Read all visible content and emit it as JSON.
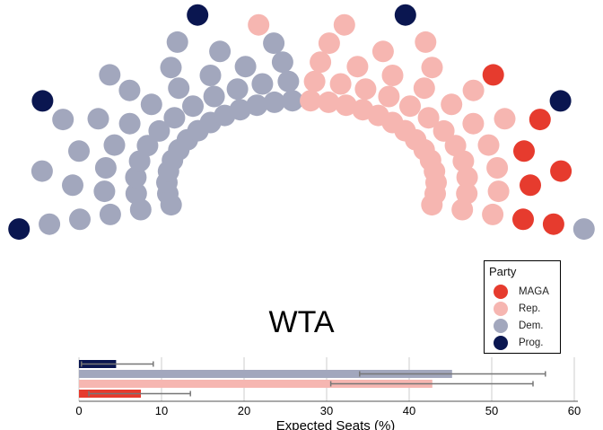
{
  "chart_data": [
    {
      "type": "parliament",
      "legend": {
        "title": "Party",
        "placement": "bottom-right",
        "entries": [
          {
            "name": "MAGA",
            "color": "#e63b2e"
          },
          {
            "name": "Rep.",
            "color": "#f6b6b1"
          },
          {
            "name": "Dem.",
            "color": "#a2a7bd"
          },
          {
            "name": "Prog.",
            "color": "#0a1650"
          }
        ]
      },
      "rows": 6,
      "seats_by_row": [
        {
          "row": 1,
          "seats": [
            {
              "party": "Prog.",
              "count": 5
            },
            {
              "party": "Dem.",
              "count": 1
            },
            {
              "party": "Rep.",
              "count": 0
            },
            {
              "party": "MAGA",
              "count": 0
            }
          ]
        },
        {
          "row": 2,
          "seats": [
            {
              "party": "Dem.",
              "count": 5
            },
            {
              "party": "Rep.",
              "count": 3
            },
            {
              "party": "MAGA",
              "count": 4
            }
          ]
        },
        {
          "row": 3,
          "seats": [
            {
              "party": "Dem.",
              "count": 8
            },
            {
              "party": "Rep.",
              "count": 5
            },
            {
              "party": "MAGA",
              "count": 3
            }
          ]
        },
        {
          "row": 4,
          "seats": [
            {
              "party": "Dem.",
              "count": 10
            },
            {
              "party": "Rep.",
              "count": 10
            },
            {
              "party": "MAGA",
              "count": 0
            }
          ]
        },
        {
          "row": 5,
          "seats": [
            {
              "party": "Dem.",
              "count": 12
            },
            {
              "party": "Rep.",
              "count": 12
            },
            {
              "party": "MAGA",
              "count": 0
            }
          ]
        },
        {
          "row": 6,
          "seats": [
            {
              "party": "Dem.",
              "count": 14
            },
            {
              "party": "Rep.",
              "count": 14
            },
            {
              "party": "MAGA",
              "count": 0
            }
          ]
        }
      ]
    },
    {
      "type": "bar",
      "orientation": "horizontal",
      "title": "WTA",
      "xlabel": "Expected Seats (%)",
      "xlim": [
        0,
        62
      ],
      "xticks": [
        0,
        10,
        20,
        30,
        40,
        50,
        60
      ],
      "grid": true,
      "series": [
        {
          "name": "Prog.",
          "color": "#0a1650",
          "value": 4.5,
          "error": [
            0.3,
            9.0
          ]
        },
        {
          "name": "Dem.",
          "color": "#a2a7bd",
          "value": 45.2,
          "error": [
            34.0,
            56.5
          ]
        },
        {
          "name": "Rep.",
          "color": "#f6b6b1",
          "value": 42.8,
          "error": [
            30.5,
            55.0
          ]
        },
        {
          "name": "MAGA",
          "color": "#e63b2e",
          "value": 7.5,
          "error": [
            1.2,
            13.5
          ]
        }
      ]
    }
  ]
}
